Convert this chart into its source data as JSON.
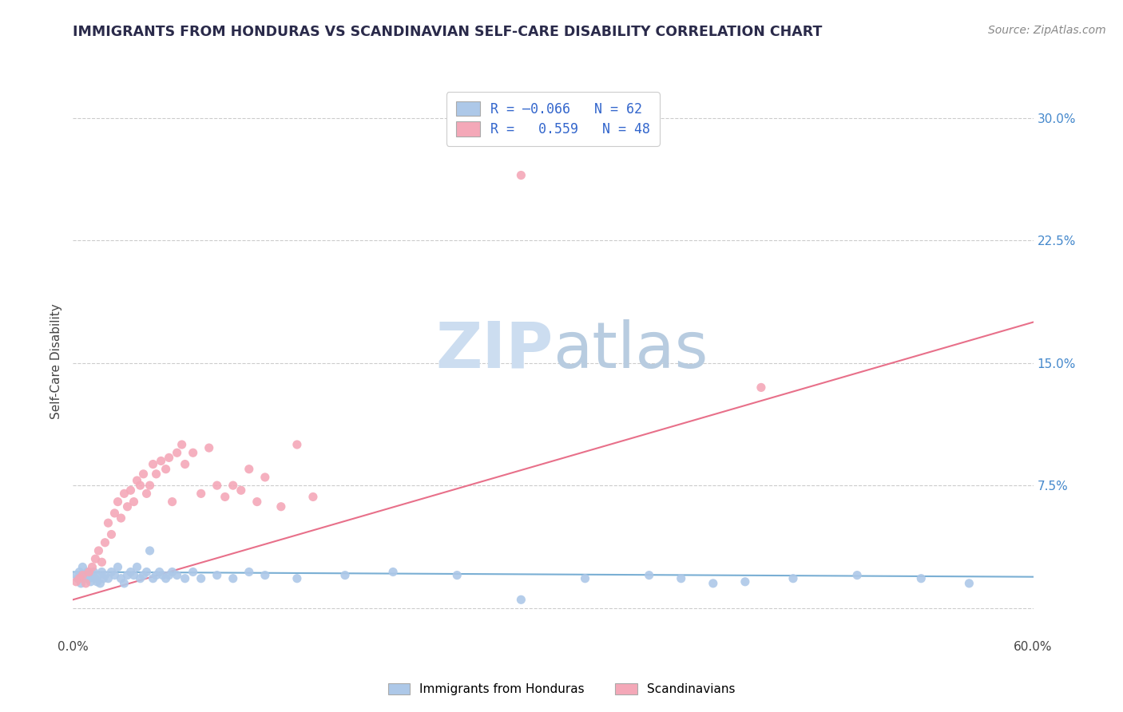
{
  "title": "IMMIGRANTS FROM HONDURAS VS SCANDINAVIAN SELF-CARE DISABILITY CORRELATION CHART",
  "source": "Source: ZipAtlas.com",
  "ylabel": "Self-Care Disability",
  "xlim": [
    0.0,
    0.6
  ],
  "ylim": [
    -0.018,
    0.32
  ],
  "yticks_right": [
    0.0,
    0.075,
    0.15,
    0.225,
    0.3
  ],
  "yticklabels_right": [
    "",
    "7.5%",
    "15.0%",
    "22.5%",
    "30.0%"
  ],
  "color_blue": "#adc8e8",
  "color_pink": "#f4a8b8",
  "line_blue": "#7aafd4",
  "line_pink": "#e8708a",
  "legend_text_color": "#3366cc",
  "watermark_color": "#ccddf0",
  "blue_scatter": [
    [
      0.002,
      0.02
    ],
    [
      0.003,
      0.018
    ],
    [
      0.004,
      0.022
    ],
    [
      0.005,
      0.015
    ],
    [
      0.006,
      0.025
    ],
    [
      0.007,
      0.02
    ],
    [
      0.008,
      0.018
    ],
    [
      0.009,
      0.022
    ],
    [
      0.01,
      0.018
    ],
    [
      0.011,
      0.016
    ],
    [
      0.012,
      0.02
    ],
    [
      0.013,
      0.022
    ],
    [
      0.014,
      0.018
    ],
    [
      0.015,
      0.016
    ],
    [
      0.016,
      0.02
    ],
    [
      0.017,
      0.015
    ],
    [
      0.018,
      0.022
    ],
    [
      0.019,
      0.018
    ],
    [
      0.02,
      0.02
    ],
    [
      0.022,
      0.018
    ],
    [
      0.024,
      0.022
    ],
    [
      0.026,
      0.02
    ],
    [
      0.028,
      0.025
    ],
    [
      0.03,
      0.018
    ],
    [
      0.032,
      0.015
    ],
    [
      0.034,
      0.02
    ],
    [
      0.036,
      0.022
    ],
    [
      0.038,
      0.02
    ],
    [
      0.04,
      0.025
    ],
    [
      0.042,
      0.018
    ],
    [
      0.044,
      0.02
    ],
    [
      0.046,
      0.022
    ],
    [
      0.048,
      0.035
    ],
    [
      0.05,
      0.018
    ],
    [
      0.052,
      0.02
    ],
    [
      0.054,
      0.022
    ],
    [
      0.056,
      0.02
    ],
    [
      0.058,
      0.018
    ],
    [
      0.06,
      0.02
    ],
    [
      0.062,
      0.022
    ],
    [
      0.065,
      0.02
    ],
    [
      0.07,
      0.018
    ],
    [
      0.075,
      0.022
    ],
    [
      0.08,
      0.018
    ],
    [
      0.09,
      0.02
    ],
    [
      0.1,
      0.018
    ],
    [
      0.11,
      0.022
    ],
    [
      0.12,
      0.02
    ],
    [
      0.14,
      0.018
    ],
    [
      0.17,
      0.02
    ],
    [
      0.2,
      0.022
    ],
    [
      0.24,
      0.02
    ],
    [
      0.28,
      0.005
    ],
    [
      0.32,
      0.018
    ],
    [
      0.36,
      0.02
    ],
    [
      0.4,
      0.015
    ],
    [
      0.45,
      0.018
    ],
    [
      0.49,
      0.02
    ],
    [
      0.53,
      0.018
    ],
    [
      0.56,
      0.015
    ],
    [
      0.38,
      0.018
    ],
    [
      0.42,
      0.016
    ]
  ],
  "pink_scatter": [
    [
      0.002,
      0.016
    ],
    [
      0.004,
      0.018
    ],
    [
      0.006,
      0.02
    ],
    [
      0.008,
      0.015
    ],
    [
      0.01,
      0.022
    ],
    [
      0.012,
      0.025
    ],
    [
      0.014,
      0.03
    ],
    [
      0.016,
      0.035
    ],
    [
      0.018,
      0.028
    ],
    [
      0.02,
      0.04
    ],
    [
      0.022,
      0.052
    ],
    [
      0.024,
      0.045
    ],
    [
      0.026,
      0.058
    ],
    [
      0.028,
      0.065
    ],
    [
      0.03,
      0.055
    ],
    [
      0.032,
      0.07
    ],
    [
      0.034,
      0.062
    ],
    [
      0.036,
      0.072
    ],
    [
      0.038,
      0.065
    ],
    [
      0.04,
      0.078
    ],
    [
      0.042,
      0.075
    ],
    [
      0.044,
      0.082
    ],
    [
      0.046,
      0.07
    ],
    [
      0.048,
      0.075
    ],
    [
      0.05,
      0.088
    ],
    [
      0.052,
      0.082
    ],
    [
      0.055,
      0.09
    ],
    [
      0.058,
      0.085
    ],
    [
      0.06,
      0.092
    ],
    [
      0.062,
      0.065
    ],
    [
      0.065,
      0.095
    ],
    [
      0.068,
      0.1
    ],
    [
      0.07,
      0.088
    ],
    [
      0.075,
      0.095
    ],
    [
      0.08,
      0.07
    ],
    [
      0.085,
      0.098
    ],
    [
      0.09,
      0.075
    ],
    [
      0.095,
      0.068
    ],
    [
      0.1,
      0.075
    ],
    [
      0.105,
      0.072
    ],
    [
      0.11,
      0.085
    ],
    [
      0.115,
      0.065
    ],
    [
      0.12,
      0.08
    ],
    [
      0.13,
      0.062
    ],
    [
      0.14,
      0.1
    ],
    [
      0.15,
      0.068
    ],
    [
      0.43,
      0.135
    ]
  ],
  "pink_outlier": [
    0.28,
    0.265
  ],
  "blue_trend": [
    0.0,
    0.6,
    0.022,
    0.019
  ],
  "pink_trend": [
    0.0,
    0.6,
    0.005,
    0.175
  ]
}
